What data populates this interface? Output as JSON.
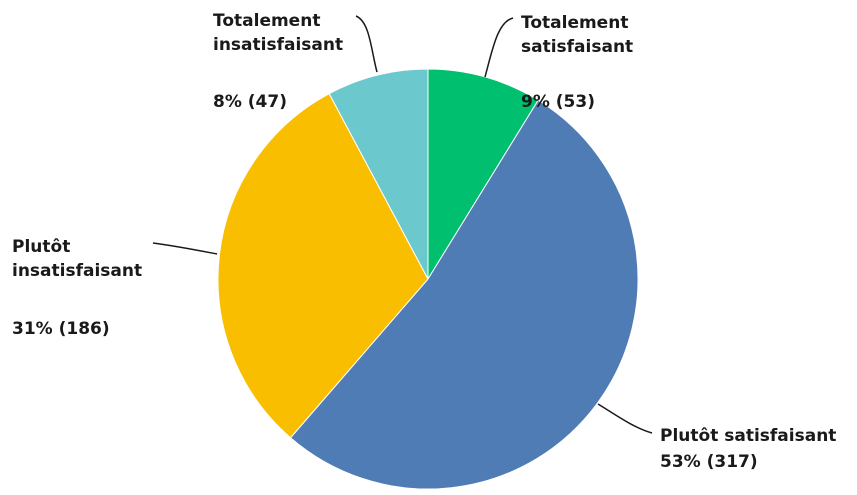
{
  "chart_data": {
    "type": "pie",
    "slices": [
      {
        "label_lines": [
          "Totalement",
          "satisfaisant"
        ],
        "value_text": "9% (53)",
        "percent": 9,
        "count": 53,
        "color": "#00BF6F"
      },
      {
        "label_lines": [
          "Plutôt satisfaisant"
        ],
        "value_text": "53% (317)",
        "percent": 53,
        "count": 317,
        "color": "#507CB6"
      },
      {
        "label_lines": [
          "Plutôt",
          "insatisfaisant"
        ],
        "value_text": "31% (186)",
        "percent": 31,
        "count": 186,
        "color": "#F9BE00"
      },
      {
        "label_lines": [
          "Totalement",
          "insatisfaisant"
        ],
        "value_text": "8% (47)",
        "percent": 8,
        "count": 47,
        "color": "#6BC8CD"
      }
    ],
    "start": "top",
    "direction": "clockwise",
    "legend": "none"
  }
}
